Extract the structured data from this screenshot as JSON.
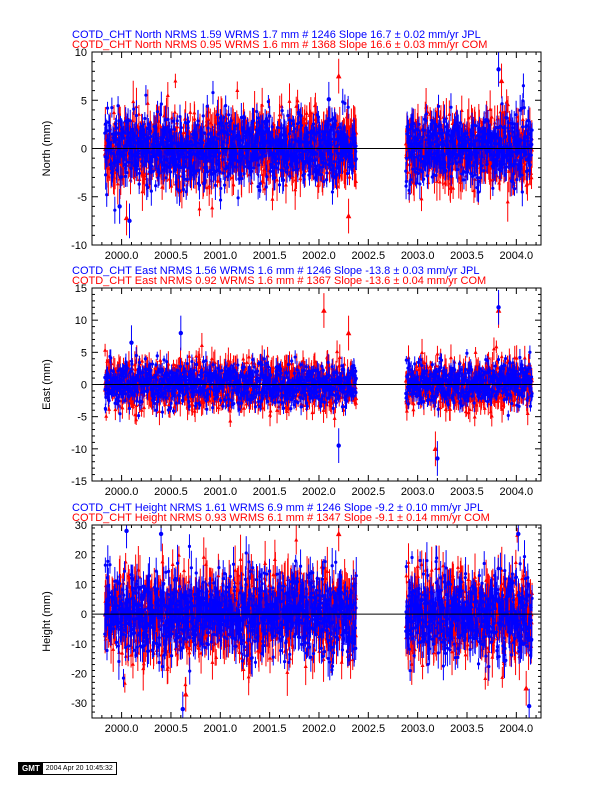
{
  "chart_data": [
    {
      "type": "scatter",
      "ylabel": "North (mm)",
      "title_lines": [
        {
          "text": "COTD_CHT North NRMS 1.59 WRMS  1.7 mm # 1246 Slope   16.7 ±  0.02 mm/yr JPL",
          "color": "#0000ff"
        },
        {
          "text": "COTD_CHT North NRMS 0.95 WRMS  1.6 mm # 1368 Slope   16.6 ±  0.03 mm/yr COM",
          "color": "#ff0000"
        }
      ],
      "xlim": [
        1999.7,
        2004.25
      ],
      "ylim": [
        -10,
        10
      ],
      "x_ticks": [
        "2000.0",
        "2000.5",
        "2001.0",
        "2001.5",
        "2002.0",
        "2002.5",
        "2003.0",
        "2003.5",
        "2004.0"
      ],
      "y_ticks": [
        "-10",
        "-5",
        "0",
        "5",
        "10"
      ],
      "zero_line": 0,
      "series": [
        {
          "name": "JPL",
          "color": "#0000ff",
          "marker": "circle",
          "count": 1246,
          "nrms": 1.59,
          "wrms_mm": 1.7,
          "slope_mm_per_yr": 16.7,
          "slope_sigma": 0.02,
          "segments": [
            [
              1999.83,
              2002.38
            ],
            [
              2002.88,
              2004.16
            ]
          ],
          "scatter_mm": 1.7,
          "outliers": [
            [
              2003.82,
              8.2
            ],
            [
              2000.08,
              -7.5
            ],
            [
              2002.1,
              5.1
            ],
            [
              1999.98,
              -6.0
            ]
          ]
        },
        {
          "name": "COM",
          "color": "#ff0000",
          "marker": "triangle",
          "count": 1368,
          "nrms": 0.95,
          "wrms_mm": 1.6,
          "slope_mm_per_yr": 16.6,
          "slope_sigma": 0.03,
          "segments": [
            [
              1999.83,
              2002.38
            ],
            [
              2002.88,
              2004.16
            ]
          ],
          "scatter_mm": 1.6,
          "outliers": [
            [
              2002.2,
              7.5
            ],
            [
              2003.85,
              7.0
            ],
            [
              2002.3,
              -7.0
            ],
            [
              2000.05,
              -7.2
            ]
          ]
        }
      ]
    },
    {
      "type": "scatter",
      "ylabel": "East (mm)",
      "title_lines": [
        {
          "text": "COTD_CHT East NRMS 1.56 WRMS  1.6 mm # 1246 Slope  -13.8 ±  0.03 mm/yr JPL",
          "color": "#0000ff"
        },
        {
          "text": "COTD_CHT East NRMS 0.92 WRMS  1.6 mm # 1367 Slope  -13.6 ±  0.04 mm/yr COM",
          "color": "#ff0000"
        }
      ],
      "xlim": [
        1999.7,
        2004.25
      ],
      "ylim": [
        -15,
        15
      ],
      "x_ticks": [
        "2000.0",
        "2000.5",
        "2001.0",
        "2001.5",
        "2002.0",
        "2002.5",
        "2003.0",
        "2003.5",
        "2004.0"
      ],
      "y_ticks": [
        "-15",
        "-10",
        "-5",
        "0",
        "5",
        "10",
        "15"
      ],
      "zero_line": 0,
      "series": [
        {
          "name": "JPL",
          "color": "#0000ff",
          "marker": "circle",
          "count": 1246,
          "nrms": 1.56,
          "wrms_mm": 1.6,
          "slope_mm_per_yr": -13.8,
          "slope_sigma": 0.03,
          "segments": [
            [
              1999.83,
              2002.38
            ],
            [
              2002.88,
              2004.16
            ]
          ],
          "scatter_mm": 1.6,
          "outliers": [
            [
              2003.82,
              12.0
            ],
            [
              2003.2,
              -11.5
            ],
            [
              2002.2,
              -9.5
            ],
            [
              2000.1,
              6.5
            ],
            [
              2000.6,
              8.0
            ]
          ]
        },
        {
          "name": "COM",
          "color": "#ff0000",
          "marker": "triangle",
          "count": 1367,
          "nrms": 0.92,
          "wrms_mm": 1.6,
          "slope_mm_per_yr": -13.6,
          "slope_sigma": 0.04,
          "segments": [
            [
              1999.83,
              2002.38
            ],
            [
              2002.88,
              2004.16
            ]
          ],
          "scatter_mm": 1.6,
          "outliers": [
            [
              2002.05,
              11.5
            ],
            [
              2002.3,
              8.0
            ],
            [
              2003.82,
              11.5
            ],
            [
              2003.18,
              -10.0
            ]
          ]
        }
      ]
    },
    {
      "type": "scatter",
      "ylabel": "Height (mm)",
      "title_lines": [
        {
          "text": "COTD_CHT Height NRMS 1.61 WRMS  6.9 mm # 1246 Slope   -9.2 ±  0.10 mm/yr JPL",
          "color": "#0000ff"
        },
        {
          "text": "COTD_CHT Height NRMS 0.93 WRMS  6.1 mm # 1347 Slope   -9.1 ±  0.14 mm/yr COM",
          "color": "#ff0000"
        }
      ],
      "xlim": [
        1999.7,
        2004.25
      ],
      "ylim": [
        -35,
        30
      ],
      "x_ticks": [
        "2000.0",
        "2000.5",
        "2001.0",
        "2001.5",
        "2002.0",
        "2002.5",
        "2003.0",
        "2003.5",
        "2004.0"
      ],
      "y_ticks": [
        "-30",
        "-20",
        "-10",
        "0",
        "10",
        "20",
        "30"
      ],
      "zero_line": 0,
      "series": [
        {
          "name": "JPL",
          "color": "#0000ff",
          "marker": "circle",
          "count": 1246,
          "nrms": 1.61,
          "wrms_mm": 6.9,
          "slope_mm_per_yr": -9.2,
          "slope_sigma": 0.1,
          "segments": [
            [
              1999.83,
              2002.38
            ],
            [
              2002.88,
              2004.16
            ]
          ],
          "scatter_mm": 6.9,
          "outliers": [
            [
              2000.05,
              28.0
            ],
            [
              2000.62,
              -32.0
            ],
            [
              2004.13,
              -31.0
            ],
            [
              2000.4,
              27.0
            ],
            [
              2004.02,
              27.0
            ]
          ]
        },
        {
          "name": "COM",
          "color": "#ff0000",
          "marker": "triangle",
          "count": 1347,
          "nrms": 0.93,
          "wrms_mm": 6.1,
          "slope_mm_per_yr": -9.1,
          "slope_sigma": 0.14,
          "segments": [
            [
              1999.83,
              2002.38
            ],
            [
              2002.88,
              2004.16
            ]
          ],
          "scatter_mm": 6.1,
          "outliers": [
            [
              2000.65,
              -27.0
            ],
            [
              2004.1,
              -25.0
            ],
            [
              2002.2,
              27.0
            ]
          ]
        }
      ]
    }
  ],
  "footer": {
    "logo": "GMT",
    "timestamp": "2004 Apr 20 10:45:32"
  }
}
